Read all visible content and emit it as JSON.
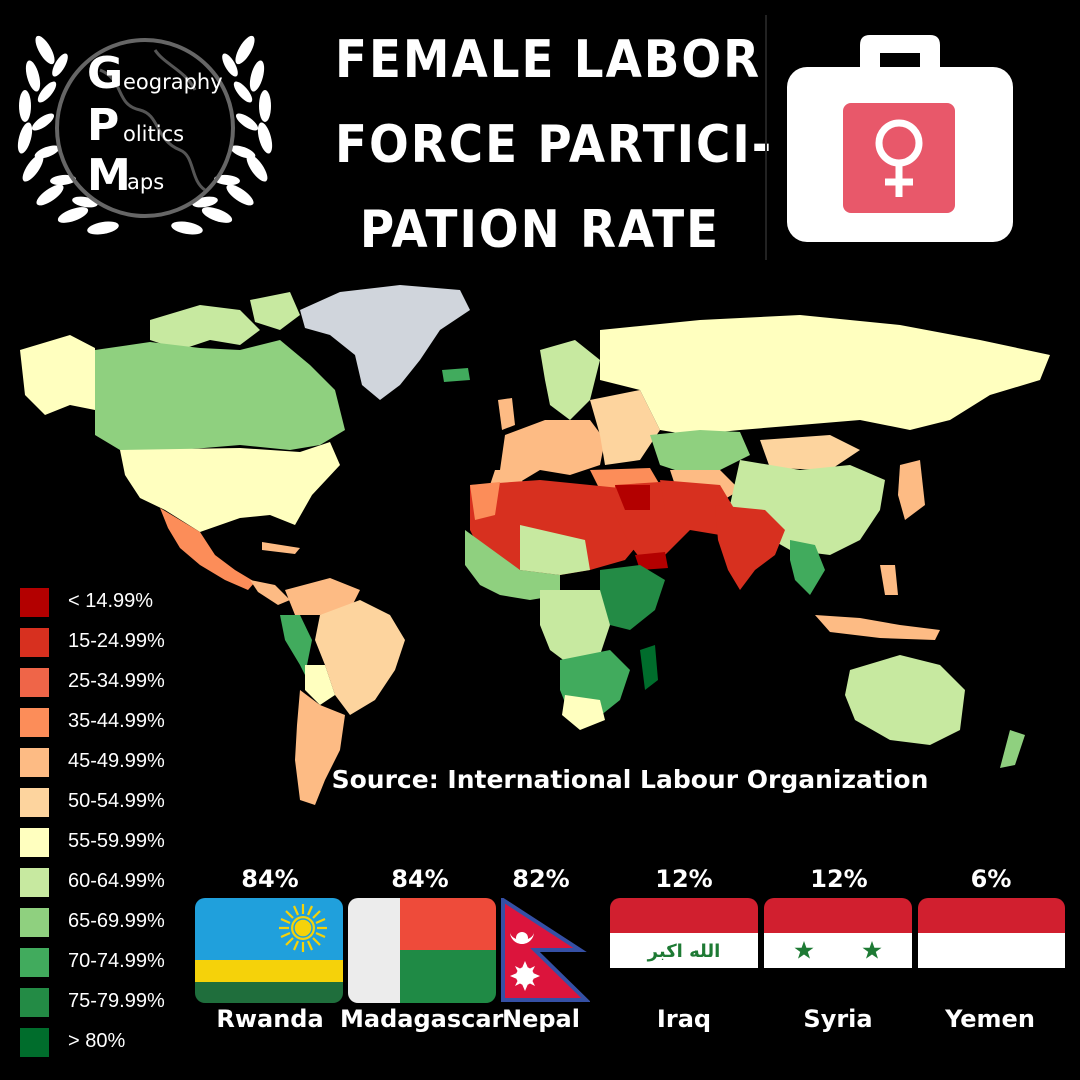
{
  "logo": {
    "letters": [
      "G",
      "P",
      "M"
    ],
    "words": [
      "eography",
      "olitics",
      "aps"
    ]
  },
  "title": {
    "lines": [
      "FEMALE LABOR",
      "FORCE PARTICI-",
      "PATION RATE"
    ]
  },
  "icon": "briefcase-female-symbol-icon",
  "source": "Source: International Labour Organization",
  "legend": [
    {
      "label": "< 14.99%",
      "color": "#b30000"
    },
    {
      "label": "15-24.99%",
      "color": "#d7301f"
    },
    {
      "label": "25-34.99%",
      "color": "#ef6548"
    },
    {
      "label": "35-44.99%",
      "color": "#fc8d59"
    },
    {
      "label": "45-49.99%",
      "color": "#fdbb84"
    },
    {
      "label": "50-54.99%",
      "color": "#fdd49e"
    },
    {
      "label": "55-59.99%",
      "color": "#ffffbf"
    },
    {
      "label": "60-64.99%",
      "color": "#c7e9a0"
    },
    {
      "label": "65-69.99%",
      "color": "#8fd07f"
    },
    {
      "label": "70-74.99%",
      "color": "#41ab5d"
    },
    {
      "label": "75-79.99%",
      "color": "#238b45"
    },
    {
      "label": "> 80%",
      "color": "#006d2c"
    }
  ],
  "highest": [
    {
      "country": "Rwanda",
      "value": "84%"
    },
    {
      "country": "Madagascar",
      "value": "84%"
    },
    {
      "country": "Nepal",
      "value": "82%"
    }
  ],
  "lowest": [
    {
      "country": "Iraq",
      "value": "12%"
    },
    {
      "country": "Syria",
      "value": "12%"
    },
    {
      "country": "Yemen",
      "value": "6%"
    }
  ],
  "flag_text": {
    "iraq": "الله اكبر"
  }
}
